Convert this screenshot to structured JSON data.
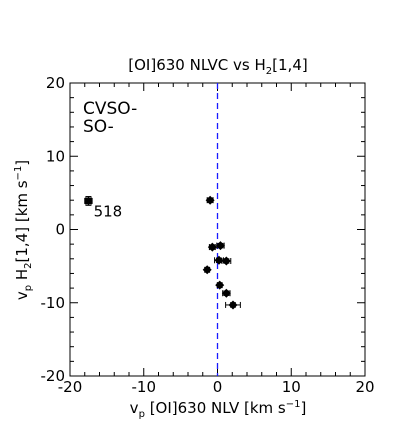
{
  "chart_data": {
    "type": "scatter",
    "title": {
      "main": "[OI]630 NLVC vs H",
      "sub": "2",
      "tail": "[1,4]"
    },
    "xlabel": {
      "pre": "v",
      "sub": "p",
      "mid": " [OI]630 NLV [km s",
      "sup": "−1",
      "post": "]"
    },
    "ylabel": {
      "pre": "v",
      "sub": "p",
      "mid1": " H",
      "sub2": "2",
      "mid2": "[1,4] [km s",
      "sup": "−1",
      "post": "]"
    },
    "xlim": [
      -20,
      20
    ],
    "ylim": [
      -20,
      20
    ],
    "xticks": [
      -20,
      -10,
      0,
      10,
      20
    ],
    "yticks": [
      -20,
      -10,
      0,
      10,
      20
    ],
    "xtick_labels": [
      "-20",
      "-10",
      "0",
      "10",
      "20"
    ],
    "ytick_labels": [
      "-20",
      "-10",
      "0",
      "10",
      "20"
    ],
    "grid": false,
    "legend": [
      {
        "label": "CVSO-",
        "color": "#228b22"
      },
      {
        "label": "SO-",
        "color": "#1a1aff"
      }
    ],
    "reference_line": {
      "x": 0,
      "style": "dashed",
      "color": "#1a1aff"
    },
    "points": [
      {
        "x": -17.5,
        "y": 3.9,
        "xerr": 0.5,
        "yerr": 0.6
      },
      {
        "x": -1.0,
        "y": 4.0,
        "xerr": 0.4,
        "yerr": 0.3
      },
      {
        "x": -0.7,
        "y": -2.4,
        "xerr": 0.4,
        "yerr": 0.3
      },
      {
        "x": 0.4,
        "y": -2.2,
        "xerr": 0.5,
        "yerr": 0.3
      },
      {
        "x": 0.2,
        "y": -4.2,
        "xerr": 0.6,
        "yerr": 0.3
      },
      {
        "x": 1.2,
        "y": -4.3,
        "xerr": 0.6,
        "yerr": 0.3
      },
      {
        "x": -1.4,
        "y": -5.5,
        "xerr": 0.3,
        "yerr": 0.3
      },
      {
        "x": 0.3,
        "y": -7.6,
        "xerr": 0.3,
        "yerr": 0.3
      },
      {
        "x": 1.2,
        "y": -8.7,
        "xerr": 0.5,
        "yerr": 0.3
      },
      {
        "x": 2.1,
        "y": -10.3,
        "xerr": 1.0,
        "yerr": 0.3
      }
    ],
    "annotations": [
      {
        "text": "518",
        "x": -16.8,
        "y": 1.8,
        "color": "#1a1aff"
      }
    ]
  }
}
